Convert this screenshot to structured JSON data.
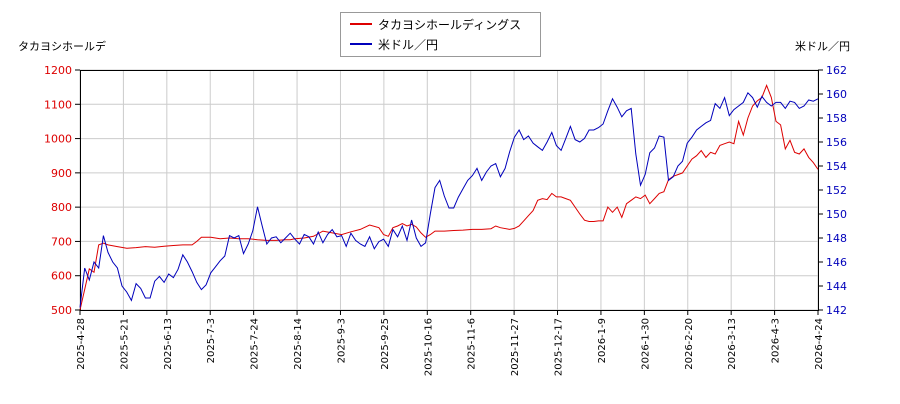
{
  "chart_data": {
    "type": "line",
    "left_axis_label": "タカヨシホールデ",
    "right_axis_label": "米ドル／円",
    "legend": {
      "placement": "top-center"
    },
    "grid": true,
    "x_ticks": [
      "2025-4-28",
      "2025-5-21",
      "2025-6-13",
      "2025-7-3",
      "2025-7-24",
      "2025-8-14",
      "2025-9-3",
      "2025-9-25",
      "2025-10-16",
      "2025-11-6",
      "2025-11-27",
      "2025-12-17",
      "2026-1-9",
      "2026-1-30",
      "2026-2-20",
      "2026-3-13",
      "2026-4-3",
      "2026-4-24"
    ],
    "y_left": {
      "min": 500,
      "max": 1200,
      "ticks": [
        500,
        600,
        700,
        800,
        900,
        1000,
        1100,
        1200
      ]
    },
    "y_right": {
      "min": 142,
      "max": 162,
      "ticks": [
        142,
        144,
        146,
        148,
        150,
        152,
        154,
        156,
        158,
        160,
        162
      ]
    },
    "series": [
      {
        "name": "タカヨシホールディングス",
        "color": "#dd0000",
        "axis": "left",
        "points": [
          [
            0,
            500
          ],
          [
            1,
            560
          ],
          [
            2,
            620
          ],
          [
            3,
            610
          ],
          [
            4,
            690
          ],
          [
            5,
            695
          ],
          [
            6,
            690
          ],
          [
            8,
            685
          ],
          [
            10,
            680
          ],
          [
            12,
            682
          ],
          [
            14,
            685
          ],
          [
            16,
            683
          ],
          [
            18,
            686
          ],
          [
            20,
            688
          ],
          [
            22,
            690
          ],
          [
            24,
            690
          ],
          [
            25,
            700
          ],
          [
            26,
            712
          ],
          [
            28,
            712
          ],
          [
            30,
            708
          ],
          [
            32,
            710
          ],
          [
            34,
            708
          ],
          [
            36,
            708
          ],
          [
            38,
            705
          ],
          [
            40,
            703
          ],
          [
            42,
            703
          ],
          [
            44,
            705
          ],
          [
            45,
            705
          ],
          [
            46,
            708
          ],
          [
            48,
            710
          ],
          [
            50,
            715
          ],
          [
            52,
            730
          ],
          [
            54,
            725
          ],
          [
            56,
            720
          ],
          [
            58,
            728
          ],
          [
            60,
            735
          ],
          [
            62,
            748
          ],
          [
            64,
            740
          ],
          [
            65,
            720
          ],
          [
            66,
            715
          ],
          [
            67,
            740
          ],
          [
            68,
            745
          ],
          [
            69,
            752
          ],
          [
            70,
            745
          ],
          [
            71,
            750
          ],
          [
            72,
            742
          ],
          [
            73,
            725
          ],
          [
            74,
            712
          ],
          [
            75,
            720
          ],
          [
            76,
            730
          ],
          [
            78,
            730
          ],
          [
            80,
            732
          ],
          [
            82,
            733
          ],
          [
            84,
            735
          ],
          [
            86,
            735
          ],
          [
            88,
            737
          ],
          [
            89,
            745
          ],
          [
            90,
            740
          ],
          [
            92,
            735
          ],
          [
            93,
            738
          ],
          [
            94,
            745
          ],
          [
            95,
            760
          ],
          [
            96,
            775
          ],
          [
            97,
            790
          ],
          [
            98,
            820
          ],
          [
            99,
            825
          ],
          [
            100,
            822
          ],
          [
            101,
            840
          ],
          [
            102,
            830
          ],
          [
            103,
            830
          ],
          [
            104,
            825
          ],
          [
            105,
            820
          ],
          [
            106,
            800
          ],
          [
            107,
            780
          ],
          [
            108,
            762
          ],
          [
            109,
            758
          ],
          [
            110,
            758
          ],
          [
            111,
            760
          ],
          [
            112,
            760
          ],
          [
            113,
            800
          ],
          [
            114,
            785
          ],
          [
            115,
            800
          ],
          [
            116,
            770
          ],
          [
            117,
            810
          ],
          [
            118,
            820
          ],
          [
            119,
            830
          ],
          [
            120,
            825
          ],
          [
            121,
            835
          ],
          [
            122,
            810
          ],
          [
            123,
            825
          ],
          [
            124,
            840
          ],
          [
            125,
            845
          ],
          [
            126,
            880
          ],
          [
            127,
            890
          ],
          [
            128,
            895
          ],
          [
            129,
            900
          ],
          [
            130,
            920
          ],
          [
            131,
            940
          ],
          [
            132,
            950
          ],
          [
            133,
            965
          ],
          [
            134,
            945
          ],
          [
            135,
            960
          ],
          [
            136,
            955
          ],
          [
            137,
            980
          ],
          [
            138,
            985
          ],
          [
            139,
            990
          ],
          [
            140,
            985
          ],
          [
            141,
            1050
          ],
          [
            142,
            1010
          ],
          [
            143,
            1060
          ],
          [
            144,
            1095
          ],
          [
            145,
            1110
          ],
          [
            146,
            1120
          ],
          [
            147,
            1155
          ],
          [
            148,
            1120
          ],
          [
            149,
            1050
          ],
          [
            150,
            1040
          ],
          [
            151,
            970
          ],
          [
            152,
            995
          ],
          [
            153,
            960
          ],
          [
            154,
            955
          ],
          [
            155,
            970
          ],
          [
            156,
            945
          ],
          [
            157,
            930
          ],
          [
            158,
            910
          ]
        ]
      },
      {
        "name": "米ドル／円",
        "color": "#0000bb",
        "axis": "right",
        "points": [
          [
            0,
            142.2
          ],
          [
            1,
            145.5
          ],
          [
            2,
            144.5
          ],
          [
            3,
            146
          ],
          [
            4,
            145.5
          ],
          [
            5,
            148.2
          ],
          [
            6,
            146.8
          ],
          [
            7,
            146
          ],
          [
            8,
            145.5
          ],
          [
            9,
            144
          ],
          [
            10,
            143.5
          ],
          [
            11,
            142.8
          ],
          [
            12,
            144.2
          ],
          [
            13,
            143.8
          ],
          [
            14,
            143
          ],
          [
            15,
            143
          ],
          [
            16,
            144.4
          ],
          [
            17,
            144.8
          ],
          [
            18,
            144.3
          ],
          [
            19,
            145
          ],
          [
            20,
            144.7
          ],
          [
            21,
            145.4
          ],
          [
            22,
            146.6
          ],
          [
            23,
            146
          ],
          [
            24,
            145.2
          ],
          [
            25,
            144.3
          ],
          [
            26,
            143.7
          ],
          [
            27,
            144.1
          ],
          [
            28,
            145.1
          ],
          [
            29,
            145.6
          ],
          [
            30,
            146.1
          ],
          [
            31,
            146.5
          ],
          [
            32,
            148.2
          ],
          [
            33,
            148
          ],
          [
            34,
            148.2
          ],
          [
            35,
            146.7
          ],
          [
            36,
            147.5
          ],
          [
            37,
            148.6
          ],
          [
            38,
            150.6
          ],
          [
            39,
            149
          ],
          [
            40,
            147.5
          ],
          [
            41,
            148
          ],
          [
            42,
            148.1
          ],
          [
            43,
            147.6
          ],
          [
            44,
            148
          ],
          [
            45,
            148.4
          ],
          [
            46,
            147.9
          ],
          [
            47,
            147.5
          ],
          [
            48,
            148.3
          ],
          [
            49,
            148.1
          ],
          [
            50,
            147.5
          ],
          [
            51,
            148.5
          ],
          [
            52,
            147.6
          ],
          [
            53,
            148.3
          ],
          [
            54,
            148.7
          ],
          [
            55,
            148.1
          ],
          [
            56,
            148.2
          ],
          [
            57,
            147.3
          ],
          [
            58,
            148.4
          ],
          [
            59,
            147.8
          ],
          [
            60,
            147.5
          ],
          [
            61,
            147.3
          ],
          [
            62,
            148.1
          ],
          [
            63,
            147.1
          ],
          [
            64,
            147.7
          ],
          [
            65,
            147.9
          ],
          [
            66,
            147.3
          ],
          [
            67,
            148.7
          ],
          [
            68,
            148.1
          ],
          [
            69,
            149
          ],
          [
            70,
            147.8
          ],
          [
            71,
            149.5
          ],
          [
            72,
            148
          ],
          [
            73,
            147.3
          ],
          [
            74,
            147.6
          ],
          [
            75,
            150
          ],
          [
            76,
            152.2
          ],
          [
            77,
            152.8
          ],
          [
            78,
            151.5
          ],
          [
            79,
            150.5
          ],
          [
            80,
            150.5
          ],
          [
            81,
            151.4
          ],
          [
            82,
            152.1
          ],
          [
            83,
            152.8
          ],
          [
            84,
            153.2
          ],
          [
            85,
            153.8
          ],
          [
            86,
            152.8
          ],
          [
            87,
            153.5
          ],
          [
            88,
            154
          ],
          [
            89,
            154.2
          ],
          [
            90,
            153.1
          ],
          [
            91,
            153.8
          ],
          [
            92,
            155.2
          ],
          [
            93,
            156.4
          ],
          [
            94,
            157
          ],
          [
            95,
            156.2
          ],
          [
            96,
            156.5
          ],
          [
            97,
            155.9
          ],
          [
            98,
            155.6
          ],
          [
            99,
            155.3
          ],
          [
            100,
            156
          ],
          [
            101,
            156.8
          ],
          [
            102,
            155.7
          ],
          [
            103,
            155.3
          ],
          [
            104,
            156.3
          ],
          [
            105,
            157.3
          ],
          [
            106,
            156.2
          ],
          [
            107,
            156
          ],
          [
            108,
            156.3
          ],
          [
            109,
            157
          ],
          [
            110,
            157
          ],
          [
            111,
            157.2
          ],
          [
            112,
            157.5
          ],
          [
            113,
            158.6
          ],
          [
            114,
            159.6
          ],
          [
            115,
            158.9
          ],
          [
            116,
            158.1
          ],
          [
            117,
            158.6
          ],
          [
            118,
            158.8
          ],
          [
            119,
            155
          ],
          [
            120,
            152.4
          ],
          [
            121,
            153.3
          ],
          [
            122,
            155.1
          ],
          [
            123,
            155.5
          ],
          [
            124,
            156.5
          ],
          [
            125,
            156.4
          ],
          [
            126,
            152.8
          ],
          [
            127,
            153.1
          ],
          [
            128,
            154
          ],
          [
            129,
            154.4
          ],
          [
            130,
            155.9
          ],
          [
            131,
            156.4
          ],
          [
            132,
            157
          ],
          [
            133,
            157.3
          ],
          [
            134,
            157.6
          ],
          [
            135,
            157.8
          ],
          [
            136,
            159.2
          ],
          [
            137,
            158.8
          ],
          [
            138,
            159.7
          ],
          [
            139,
            158.2
          ],
          [
            140,
            158.7
          ],
          [
            141,
            159
          ],
          [
            142,
            159.3
          ],
          [
            143,
            160.1
          ],
          [
            144,
            159.7
          ],
          [
            145,
            158.9
          ],
          [
            146,
            159.8
          ],
          [
            147,
            159.3
          ],
          [
            148,
            159
          ],
          [
            149,
            159.3
          ],
          [
            150,
            159.3
          ],
          [
            151,
            158.8
          ],
          [
            152,
            159.4
          ],
          [
            153,
            159.3
          ],
          [
            154,
            158.8
          ],
          [
            155,
            159
          ],
          [
            156,
            159.5
          ],
          [
            157,
            159.4
          ],
          [
            158,
            159.6
          ]
        ]
      }
    ]
  }
}
